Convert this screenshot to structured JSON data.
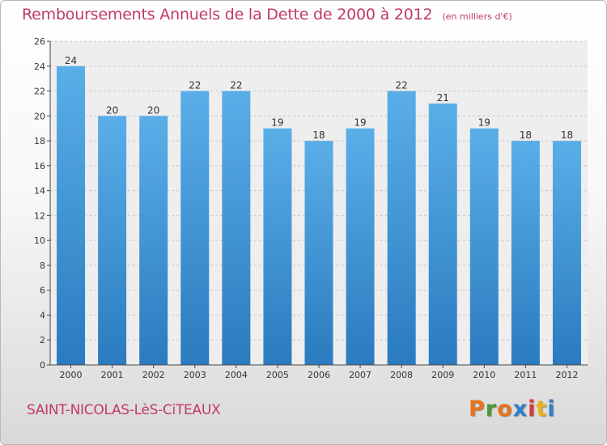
{
  "header": {
    "title": "Remboursements Annuels de la Dette de 2000 à 2012",
    "unit": "(en milliers d'€)"
  },
  "footer": {
    "commune": "SAINT-NICOLAS-LèS-CiTEAUX",
    "brand": "Proxiti",
    "brand_colors": [
      "#e8731a",
      "#4a9a2e",
      "#e8731a",
      "#2f7fc8",
      "#d83a3a",
      "#e8b21a",
      "#2f7fc8"
    ]
  },
  "chart_data": {
    "type": "bar",
    "categories": [
      "2000",
      "2001",
      "2002",
      "2003",
      "2004",
      "2005",
      "2006",
      "2007",
      "2008",
      "2009",
      "2010",
      "2011",
      "2012"
    ],
    "values": [
      24,
      20,
      20,
      22,
      22,
      19,
      18,
      19,
      22,
      21,
      19,
      18,
      18
    ],
    "data_labels": [
      "24",
      "20",
      "20",
      "22",
      "22",
      "19",
      "18",
      "19",
      "22",
      "21",
      "19",
      "18",
      "18"
    ],
    "yticks": [
      "0",
      "2",
      "4",
      "6",
      "8",
      "10",
      "12",
      "14",
      "16",
      "18",
      "20",
      "22",
      "24",
      "26"
    ],
    "ylim": [
      0,
      26
    ],
    "grid": true,
    "bar_color_top": "#5aaee8",
    "bar_color_bottom": "#2a7bbf"
  }
}
